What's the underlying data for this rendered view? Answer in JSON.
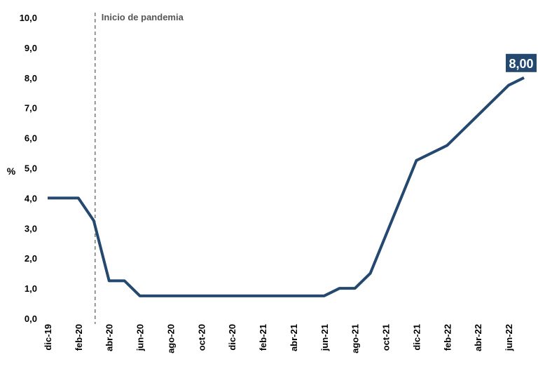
{
  "chart_data": {
    "type": "line",
    "title": "",
    "xlabel": "",
    "ylabel": "%",
    "ylim": [
      0,
      10
    ],
    "y_ticks": [
      "0,0",
      "1,0",
      "2,0",
      "3,0",
      "4,0",
      "5,0",
      "6,0",
      "7,0",
      "8,0",
      "9,0",
      "10,0"
    ],
    "x_tick_labels": [
      "dic-19",
      "feb-20",
      "abr-20",
      "jun-20",
      "ago-20",
      "oct-20",
      "dic-20",
      "feb-21",
      "abr-21",
      "jun-21",
      "ago-21",
      "oct-21",
      "dic-21",
      "feb-22",
      "abr-22",
      "jun-22"
    ],
    "grid": false,
    "legend": "none",
    "annotation": {
      "label": "Inicio de pandemia",
      "x": "mar-20"
    },
    "end_label": "8,00",
    "series": [
      {
        "color": "#24486e",
        "points": [
          {
            "x": "dic-19",
            "y": 4.0
          },
          {
            "x": "ene-20",
            "y": 4.0
          },
          {
            "x": "feb-20",
            "y": 4.0
          },
          {
            "x": "mar-20",
            "y": 3.25
          },
          {
            "x": "abr-20",
            "y": 1.25
          },
          {
            "x": "may-20",
            "y": 1.25
          },
          {
            "x": "jun-20",
            "y": 0.75
          },
          {
            "x": "jul-20",
            "y": 0.75
          },
          {
            "x": "ago-20",
            "y": 0.75
          },
          {
            "x": "sep-20",
            "y": 0.75
          },
          {
            "x": "oct-20",
            "y": 0.75
          },
          {
            "x": "nov-20",
            "y": 0.75
          },
          {
            "x": "dic-20",
            "y": 0.75
          },
          {
            "x": "ene-21",
            "y": 0.75
          },
          {
            "x": "feb-21",
            "y": 0.75
          },
          {
            "x": "mar-21",
            "y": 0.75
          },
          {
            "x": "abr-21",
            "y": 0.75
          },
          {
            "x": "may-21",
            "y": 0.75
          },
          {
            "x": "jun-21",
            "y": 0.75
          },
          {
            "x": "jul-21",
            "y": 1.0
          },
          {
            "x": "ago-21",
            "y": 1.0
          },
          {
            "x": "sep-21",
            "y": 1.5
          },
          {
            "x": "oct-21",
            "y": 2.75
          },
          {
            "x": "nov-21",
            "y": 4.0
          },
          {
            "x": "dic-21",
            "y": 5.25
          },
          {
            "x": "ene-22",
            "y": 5.5
          },
          {
            "x": "feb-22",
            "y": 5.75
          },
          {
            "x": "mar-22",
            "y": 6.25
          },
          {
            "x": "abr-22",
            "y": 6.75
          },
          {
            "x": "may-22",
            "y": 7.25
          },
          {
            "x": "jun-22",
            "y": 7.75
          },
          {
            "x": "jul-22",
            "y": 8.0
          }
        ]
      }
    ]
  }
}
